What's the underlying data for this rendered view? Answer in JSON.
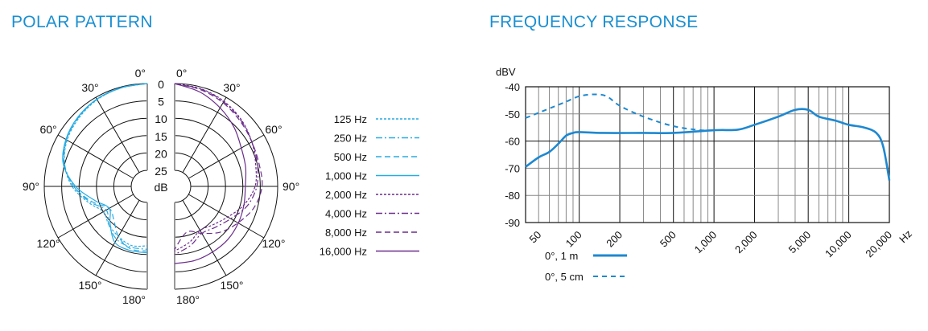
{
  "titles": {
    "polar": "POLAR PATTERN",
    "frequency": "FREQUENCY RESPONSE"
  },
  "colors": {
    "title": "#1a8fd1",
    "polar_low": "#29abe2",
    "polar_high": "#6b2d8b",
    "freq": "#1e88d0"
  },
  "chart_data": [
    {
      "type": "polar",
      "title": "POLAR PATTERN",
      "angle_labels": [
        "0°",
        "30°",
        "60°",
        "90°",
        "120°",
        "150°",
        "180°"
      ],
      "db_labels": [
        "0",
        "5",
        "10",
        "15",
        "20",
        "25",
        "dB"
      ],
      "db_range": [
        0,
        25
      ],
      "angles": [
        0,
        15,
        30,
        45,
        60,
        75,
        90,
        105,
        120,
        135,
        150,
        165,
        180
      ],
      "series": [
        {
          "name": "125 Hz",
          "side": "left",
          "style": "dotted",
          "color": "#29abe2",
          "values": [
            0,
            0.3,
            0.8,
            1.8,
            3,
            5,
            8,
            12,
            15,
            14,
            13,
            12,
            12.5
          ]
        },
        {
          "name": "250 Hz",
          "side": "left",
          "style": "dashdot",
          "color": "#29abe2",
          "values": [
            0,
            0.3,
            0.7,
            1.6,
            2.8,
            5,
            8.5,
            12.5,
            16,
            14,
            12,
            11.5,
            11.5
          ]
        },
        {
          "name": "500 Hz",
          "side": "left",
          "style": "dashed",
          "color": "#29abe2",
          "values": [
            0,
            0.2,
            0.6,
            1.5,
            2.7,
            4.8,
            8.5,
            13,
            17,
            16,
            13,
            11,
            11
          ]
        },
        {
          "name": "1,000 Hz",
          "side": "left",
          "style": "solid",
          "color": "#29abe2",
          "values": [
            0,
            0.2,
            0.6,
            1.4,
            2.6,
            4.6,
            9,
            14,
            17,
            14.5,
            11,
            10.5,
            10.5
          ]
        },
        {
          "name": "2,000 Hz",
          "side": "right",
          "style": "dotted",
          "color": "#6b2d8b",
          "values": [
            0,
            0.5,
            1.3,
            2.5,
            4,
            5.5,
            6.5,
            9,
            12,
            14,
            15,
            13,
            11
          ]
        },
        {
          "name": "4,000 Hz",
          "side": "right",
          "style": "dashdot",
          "color": "#6b2d8b",
          "values": [
            0,
            0.6,
            1.5,
            2.7,
            4,
            5,
            6,
            8,
            11,
            13,
            14,
            12,
            10
          ]
        },
        {
          "name": "8,000 Hz",
          "side": "right",
          "style": "dashed",
          "color": "#6b2d8b",
          "values": [
            0,
            0.8,
            1.8,
            3,
            4,
            4.5,
            4.5,
            6,
            8.6,
            11,
            14,
            16,
            11.5
          ]
        },
        {
          "name": "16,000 Hz",
          "side": "right",
          "style": "solid",
          "color": "#6b2d8b",
          "values": [
            0,
            1.5,
            3.5,
            5.5,
            7.5,
            8.5,
            9.3,
            9,
            8.5,
            8,
            7.8,
            7.5,
            7.4
          ]
        }
      ]
    },
    {
      "type": "line",
      "title": "FREQUENCY RESPONSE",
      "ylabel": "dBV",
      "xlabel": "Hz",
      "xscale": "log",
      "xlim": [
        40,
        20000
      ],
      "ylim": [
        -90,
        -40
      ],
      "yticks": [
        -40,
        -50,
        -60,
        -70,
        -80,
        -90
      ],
      "ytick_labels": [
        "-40",
        "-50",
        "-60",
        "-70",
        "-80",
        "-90"
      ],
      "xticks": [
        50,
        100,
        200,
        500,
        1000,
        2000,
        5000,
        10000,
        20000
      ],
      "xtick_labels": [
        "50",
        "100",
        "200",
        "500",
        "1,000",
        "2,000",
        "5,000",
        "10,000",
        "20,000"
      ],
      "grid": true,
      "legend_placement": "bottom-left",
      "series": [
        {
          "name": "0°, 1 m",
          "style": "solid",
          "x": [
            40,
            50,
            60,
            70,
            80,
            90,
            100,
            150,
            300,
            500,
            1000,
            1500,
            2000,
            3000,
            4000,
            5000,
            6000,
            8000,
            10000,
            13000,
            16000,
            18000,
            20000
          ],
          "y": [
            -69.5,
            -66,
            -64,
            -61,
            -58,
            -57,
            -56.7,
            -57,
            -57,
            -57,
            -56,
            -55.8,
            -54,
            -51,
            -48.5,
            -48.5,
            -51,
            -52.5,
            -54,
            -55,
            -57,
            -62,
            -74.5
          ]
        },
        {
          "name": "0°, 5 cm",
          "style": "dashed",
          "x": [
            40,
            60,
            80,
            100,
            130,
            160,
            200,
            300,
            500,
            800,
            1000
          ],
          "y": [
            -51.5,
            -48,
            -45.5,
            -43.5,
            -42.8,
            -43.5,
            -47,
            -51,
            -54.5,
            -56,
            -56
          ]
        }
      ]
    }
  ]
}
